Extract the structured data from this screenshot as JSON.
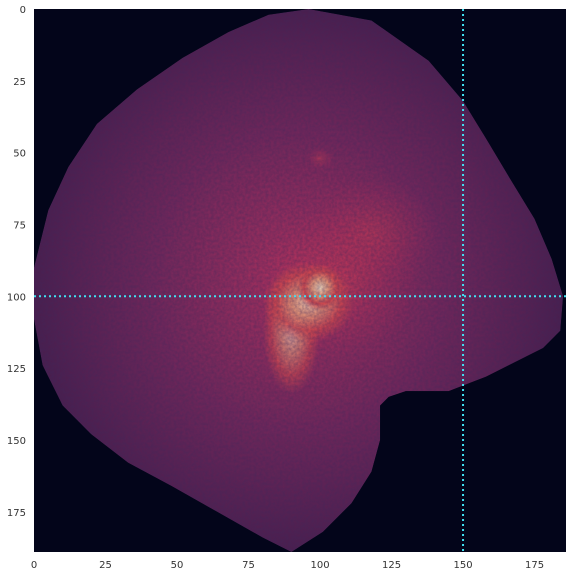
{
  "chart_data": {
    "type": "heatmap",
    "title": "",
    "xlabel": "",
    "ylabel": "",
    "xlim": [
      0,
      186
    ],
    "ylim": [
      189,
      0
    ],
    "grid": false,
    "x_ticks": [
      {
        "value": 0,
        "label": "0"
      },
      {
        "value": 25,
        "label": "25"
      },
      {
        "value": 50,
        "label": "50"
      },
      {
        "value": 75,
        "label": "75"
      },
      {
        "value": 100,
        "label": "100"
      },
      {
        "value": 125,
        "label": "125"
      },
      {
        "value": 150,
        "label": "150"
      },
      {
        "value": 175,
        "label": "175"
      }
    ],
    "y_ticks": [
      {
        "value": 0,
        "label": "0"
      },
      {
        "value": 25,
        "label": "25"
      },
      {
        "value": 50,
        "label": "50"
      },
      {
        "value": 75,
        "label": "75"
      },
      {
        "value": 100,
        "label": "100"
      },
      {
        "value": 125,
        "label": "125"
      },
      {
        "value": 150,
        "label": "150"
      },
      {
        "value": 175,
        "label": "175"
      }
    ],
    "colormap": "rocket",
    "crosshair": {
      "x": 150,
      "y": 100,
      "color": "#40e0f0",
      "style": "dotted"
    },
    "colors": {
      "background": "#03051a",
      "low": "#3a1a4a",
      "mid": "#a0255a",
      "high": "#f5c8a0"
    },
    "tissue_outline": [
      [
        96,
        0
      ],
      [
        118,
        4
      ],
      [
        138,
        18
      ],
      [
        150,
        32
      ],
      [
        158,
        45
      ],
      [
        167,
        60
      ],
      [
        175,
        73
      ],
      [
        181,
        87
      ],
      [
        185,
        100
      ],
      [
        184,
        112
      ],
      [
        178,
        118
      ],
      [
        170,
        122
      ],
      [
        158,
        128
      ],
      [
        145,
        133
      ],
      [
        130,
        133
      ],
      [
        124,
        135
      ],
      [
        121,
        138
      ],
      [
        121,
        150
      ],
      [
        118,
        161
      ],
      [
        111,
        172
      ],
      [
        101,
        182
      ],
      [
        90,
        189
      ],
      [
        80,
        184
      ],
      [
        64,
        175
      ],
      [
        48,
        166
      ],
      [
        33,
        158
      ],
      [
        20,
        148
      ],
      [
        10,
        138
      ],
      [
        3,
        124
      ],
      [
        0,
        108
      ],
      [
        0,
        90
      ],
      [
        5,
        70
      ],
      [
        12,
        55
      ],
      [
        22,
        40
      ],
      [
        36,
        28
      ],
      [
        52,
        17
      ],
      [
        68,
        8
      ],
      [
        82,
        2
      ]
    ],
    "hotspots": [
      {
        "x": 100,
        "y": 97,
        "rx": 8,
        "ry": 8,
        "intensity": 1.0
      },
      {
        "x": 96,
        "y": 102,
        "rx": 16,
        "ry": 14,
        "intensity": 0.75
      },
      {
        "x": 105,
        "y": 95,
        "rx": 30,
        "ry": 26,
        "intensity": 0.45
      },
      {
        "x": 90,
        "y": 112,
        "rx": 10,
        "ry": 22,
        "intensity": 0.55
      },
      {
        "x": 118,
        "y": 78,
        "rx": 24,
        "ry": 20,
        "intensity": 0.3
      },
      {
        "x": 100,
        "y": 52,
        "rx": 5,
        "ry": 4,
        "intensity": 0.35
      }
    ]
  }
}
